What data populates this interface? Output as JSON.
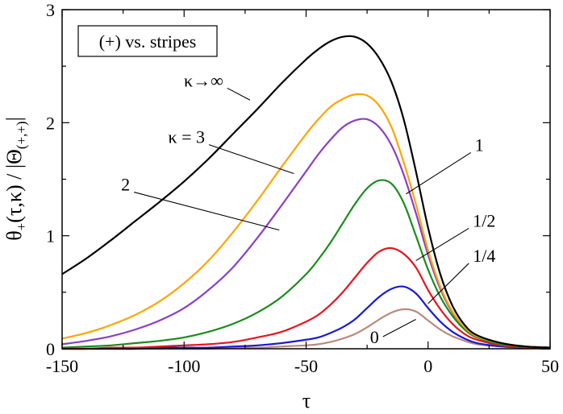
{
  "chart_data": {
    "type": "line",
    "title": "",
    "legend_label": "(+) vs. stripes",
    "xlabel": "τ",
    "ylabel_main": "θ",
    "ylabel_sub": "+",
    "ylabel_args": "(τ,κ) / |Θ",
    "ylabel_sub2": "(+,+)",
    "ylabel_end": "|",
    "xlim": [
      -150,
      50
    ],
    "ylim": [
      0,
      3
    ],
    "xticks": [
      -150,
      -100,
      -50,
      0,
      50
    ],
    "xtick_labels": [
      "-150",
      "-100",
      "-50",
      "0",
      "50"
    ],
    "yticks": [
      0,
      1,
      2,
      3
    ],
    "ytick_labels": [
      "0",
      "1",
      "2",
      "3"
    ],
    "series": [
      {
        "name": "κ→∞",
        "label": "κ→∞",
        "color": "#000000",
        "x": [
          -150,
          -140,
          -130,
          -120,
          -110,
          -100,
          -90,
          -80,
          -70,
          -60,
          -50,
          -45,
          -40,
          -35,
          -30,
          -25,
          -20,
          -15,
          -10,
          -5,
          0,
          5,
          10,
          15,
          20,
          30,
          40,
          50
        ],
        "y": [
          0.66,
          0.8,
          0.96,
          1.13,
          1.3,
          1.48,
          1.68,
          1.9,
          2.12,
          2.35,
          2.56,
          2.65,
          2.72,
          2.76,
          2.76,
          2.7,
          2.57,
          2.36,
          2.03,
          1.57,
          1.07,
          0.66,
          0.38,
          0.21,
          0.12,
          0.05,
          0.02,
          0.01
        ],
        "label_x": -92,
        "label_y": 2.32,
        "tip_x": -73,
        "tip_y": 2.2
      },
      {
        "name": "κ = 3",
        "label": "κ = 3",
        "color": "#ffa500",
        "x": [
          -150,
          -140,
          -130,
          -120,
          -110,
          -100,
          -90,
          -80,
          -70,
          -60,
          -50,
          -45,
          -40,
          -35,
          -30,
          -25,
          -20,
          -15,
          -10,
          -5,
          0,
          5,
          10,
          15,
          20,
          30,
          40,
          50
        ],
        "y": [
          0.09,
          0.14,
          0.21,
          0.3,
          0.42,
          0.58,
          0.78,
          1.03,
          1.31,
          1.61,
          1.9,
          2.03,
          2.14,
          2.21,
          2.25,
          2.24,
          2.15,
          1.96,
          1.65,
          1.28,
          0.87,
          0.55,
          0.33,
          0.19,
          0.11,
          0.05,
          0.02,
          0.01
        ],
        "label_x": -99,
        "label_y": 1.82,
        "tip_x": -55,
        "tip_y": 1.55
      },
      {
        "name": "2",
        "label": "2",
        "color": "#8b3fc7",
        "x": [
          -150,
          -140,
          -130,
          -120,
          -110,
          -100,
          -90,
          -80,
          -70,
          -60,
          -50,
          -45,
          -40,
          -35,
          -30,
          -25,
          -20,
          -15,
          -10,
          -5,
          0,
          5,
          10,
          15,
          20,
          30,
          40,
          50
        ],
        "y": [
          0.04,
          0.07,
          0.11,
          0.17,
          0.25,
          0.36,
          0.52,
          0.72,
          0.98,
          1.27,
          1.57,
          1.72,
          1.85,
          1.96,
          2.02,
          2.03,
          1.96,
          1.8,
          1.54,
          1.2,
          0.83,
          0.53,
          0.32,
          0.19,
          0.11,
          0.05,
          0.02,
          0.01
        ],
        "label_x": -124,
        "label_y": 1.4,
        "tip_x": -61,
        "tip_y": 1.05
      },
      {
        "name": "1",
        "label": "1",
        "color": "#1a8c1a",
        "x": [
          -150,
          -140,
          -130,
          -120,
          -110,
          -100,
          -90,
          -80,
          -70,
          -60,
          -50,
          -45,
          -40,
          -35,
          -30,
          -25,
          -20,
          -15,
          -10,
          -5,
          0,
          5,
          10,
          15,
          20,
          30,
          40,
          50
        ],
        "y": [
          0.01,
          0.02,
          0.03,
          0.05,
          0.07,
          0.1,
          0.15,
          0.22,
          0.32,
          0.46,
          0.66,
          0.79,
          0.94,
          1.11,
          1.28,
          1.42,
          1.49,
          1.46,
          1.29,
          1.0,
          0.7,
          0.46,
          0.29,
          0.17,
          0.1,
          0.04,
          0.02,
          0.01
        ],
        "label_x": 21,
        "label_y": 1.75,
        "tip_x": -9,
        "tip_y": 1.37
      },
      {
        "name": "1/2",
        "label": "1/2",
        "color": "#e8141c",
        "x": [
          -150,
          -140,
          -130,
          -120,
          -110,
          -100,
          -90,
          -80,
          -70,
          -60,
          -50,
          -45,
          -40,
          -35,
          -30,
          -25,
          -20,
          -15,
          -10,
          -5,
          0,
          5,
          10,
          15,
          20,
          30,
          40,
          50
        ],
        "y": [
          0.0,
          0.0,
          0.01,
          0.01,
          0.02,
          0.03,
          0.04,
          0.06,
          0.1,
          0.15,
          0.24,
          0.3,
          0.39,
          0.5,
          0.63,
          0.76,
          0.86,
          0.89,
          0.84,
          0.72,
          0.52,
          0.35,
          0.22,
          0.13,
          0.08,
          0.03,
          0.01,
          0.0
        ],
        "label_x": 23,
        "label_y": 1.08,
        "tip_x": -5,
        "tip_y": 0.78
      },
      {
        "name": "1/4",
        "label": "1/4",
        "color": "#1a1ad8",
        "x": [
          -150,
          -140,
          -130,
          -120,
          -110,
          -100,
          -90,
          -80,
          -70,
          -60,
          -50,
          -45,
          -40,
          -35,
          -30,
          -25,
          -20,
          -15,
          -10,
          -5,
          0,
          5,
          10,
          15,
          20,
          30,
          40,
          50
        ],
        "y": [
          0.0,
          0.0,
          0.0,
          0.0,
          0.01,
          0.01,
          0.01,
          0.02,
          0.03,
          0.05,
          0.08,
          0.1,
          0.14,
          0.19,
          0.26,
          0.36,
          0.46,
          0.53,
          0.55,
          0.49,
          0.36,
          0.24,
          0.15,
          0.09,
          0.05,
          0.02,
          0.01,
          0.0
        ],
        "label_x": 23,
        "label_y": 0.77,
        "tip_x": 0,
        "tip_y": 0.4
      },
      {
        "name": "0",
        "label": "0",
        "color": "#b88a80",
        "x": [
          -150,
          -140,
          -130,
          -120,
          -110,
          -100,
          -90,
          -80,
          -70,
          -60,
          -50,
          -45,
          -40,
          -35,
          -30,
          -25,
          -20,
          -15,
          -10,
          -5,
          0,
          5,
          10,
          15,
          20,
          30,
          40,
          50
        ],
        "y": [
          0.0,
          0.0,
          0.0,
          0.0,
          0.0,
          0.0,
          0.0,
          0.01,
          0.01,
          0.02,
          0.03,
          0.04,
          0.06,
          0.09,
          0.13,
          0.19,
          0.26,
          0.32,
          0.35,
          0.33,
          0.25,
          0.17,
          0.11,
          0.07,
          0.04,
          0.02,
          0.01,
          0.0
        ],
        "label_x": -22,
        "label_y": 0.05,
        "tip_x": -5,
        "tip_y": 0.26
      }
    ]
  }
}
